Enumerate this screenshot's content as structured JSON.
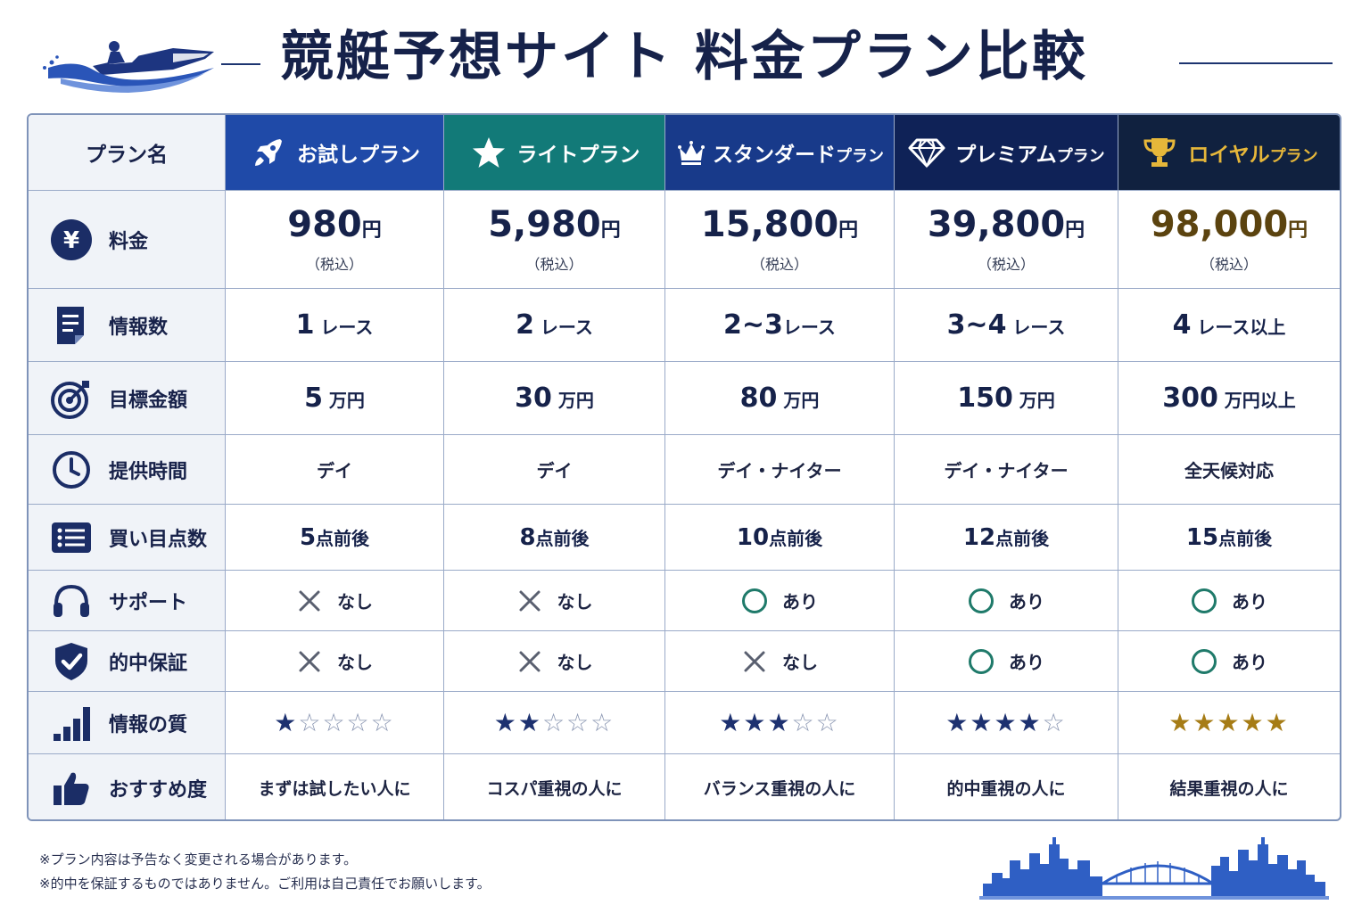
{
  "title": "競艇予想サイト 料金プラン比較",
  "header_label": "プラン名",
  "plans": [
    {
      "name": "お試しプラン",
      "name_suffix": "",
      "bg": "#1f4aa8",
      "text_color": "#ffffff",
      "icon": "rocket-icon"
    },
    {
      "name": "ライト",
      "name_suffix": "プラン",
      "bg": "#127a78",
      "text_color": "#ffffff",
      "icon": "star-icon"
    },
    {
      "name": "スタンダード",
      "name_suffix": "プラン",
      "bg": "#183a8a",
      "text_color": "#ffffff",
      "icon": "crown-icon"
    },
    {
      "name": "プレミアム",
      "name_suffix": "プラン",
      "bg": "#0f2257",
      "text_color": "#ffffff",
      "icon": "diamond-icon"
    },
    {
      "name": "ロイヤル",
      "name_suffix": "プラン",
      "bg": "#10213f",
      "text_color": "#e6b73a",
      "icon": "trophy-icon"
    }
  ],
  "rows": {
    "price": {
      "label": "料金",
      "icon": "yen-icon",
      "unit": "円",
      "tax": "（税込）",
      "values": [
        "980",
        "5,980",
        "15,800",
        "39,800",
        "98,000"
      ]
    },
    "info_count": {
      "label": "情報数",
      "icon": "document-icon",
      "values": [
        [
          "1",
          "レース"
        ],
        [
          "2",
          "レース"
        ],
        [
          "2~3",
          "レース"
        ],
        [
          "3~4",
          "レース"
        ],
        [
          "4",
          "レース以上"
        ]
      ]
    },
    "target": {
      "label": "目標金額",
      "icon": "target-icon",
      "values": [
        [
          "5",
          "万円"
        ],
        [
          "30",
          "万円"
        ],
        [
          "80",
          "万円"
        ],
        [
          "150",
          "万円"
        ],
        [
          "300",
          "万円以上"
        ]
      ]
    },
    "time": {
      "label": "提供時間",
      "icon": "clock-icon",
      "values": [
        "デイ",
        "デイ",
        "デイ・ナイター",
        "デイ・ナイター",
        "全天候対応"
      ]
    },
    "points": {
      "label": "買い目点数",
      "icon": "list-icon",
      "values": [
        [
          "5",
          "点前後"
        ],
        [
          "8",
          "点前後"
        ],
        [
          "10",
          "点前後"
        ],
        [
          "12",
          "点前後"
        ],
        [
          "15",
          "点前後"
        ]
      ]
    },
    "support": {
      "label": "サポート",
      "icon": "headset-icon",
      "values": [
        {
          "mark": "cross",
          "text": "なし"
        },
        {
          "mark": "cross",
          "text": "なし"
        },
        {
          "mark": "circle",
          "text": "あり"
        },
        {
          "mark": "circle",
          "text": "あり"
        },
        {
          "mark": "circle",
          "text": "あり"
        }
      ]
    },
    "guarantee": {
      "label": "的中保証",
      "icon": "shield-check-icon",
      "values": [
        {
          "mark": "cross",
          "text": "なし"
        },
        {
          "mark": "cross",
          "text": "なし"
        },
        {
          "mark": "cross",
          "text": "なし"
        },
        {
          "mark": "circle",
          "text": "あり"
        },
        {
          "mark": "circle",
          "text": "あり"
        }
      ]
    },
    "quality": {
      "label": "情報の質",
      "icon": "bar-chart-icon",
      "values": [
        1,
        2,
        3,
        4,
        5
      ],
      "max": 5
    },
    "recommend": {
      "label": "おすすめ度",
      "icon": "thumbs-up-icon",
      "values": [
        "まずは試したい人に",
        "コスパ重視の人に",
        "バランス重視の人に",
        "的中重視の人に",
        "結果重視の人に"
      ]
    }
  },
  "colors": {
    "navy": "#16224a",
    "circle_green": "#1f7a6a",
    "cross_gray": "#5a6070",
    "star_navy": "#1d3170",
    "star_gold": "#a67c16",
    "price_gold": "#5b430f"
  },
  "notes": [
    "※プラン内容は予告なく変更される場合があります。",
    "※的中を保証するものではありません。ご利用は自己責任でお願いします。"
  ]
}
